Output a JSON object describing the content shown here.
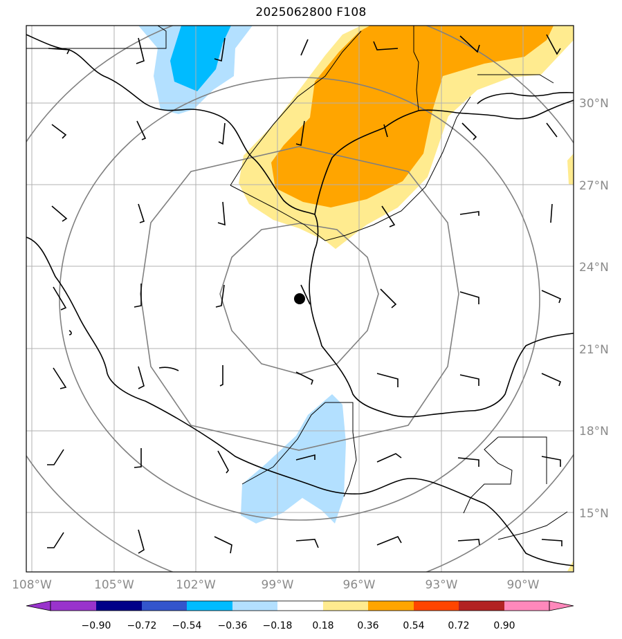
{
  "map": {
    "title": "2025062800 F108",
    "lat_labels": [
      "30°N",
      "27°N",
      "24°N",
      "21°N",
      "18°N",
      "15°N"
    ],
    "lon_labels": [
      "108°W",
      "105°W",
      "102°W",
      "99°W",
      "96°W",
      "93°W",
      "90°W"
    ],
    "extent": {
      "lon_min": -108.2,
      "lon_max": -88.2,
      "lat_min": 12.8,
      "lat_max": 32.8
    },
    "center_marker": {
      "lon": -98.0,
      "lat": 22.8
    },
    "range_rings": 4
  },
  "colorbar": {
    "ticks": [
      "−0.90",
      "−0.72",
      "−0.54",
      "−0.36",
      "−0.18",
      "0.18",
      "0.36",
      "0.54",
      "0.72",
      "0.90"
    ],
    "colors": [
      "#9933cc",
      "#000088",
      "#3355cc",
      "#00bbff",
      "#b3e0ff",
      "#ffffff",
      "#ffeb8f",
      "#ffa500",
      "#ff4500",
      "#b22222",
      "#ff88bb"
    ]
  },
  "colors": {
    "frame": "#000000",
    "grid": "#b0b0b0",
    "rings": "#808080",
    "label": "#8a8a8a"
  }
}
